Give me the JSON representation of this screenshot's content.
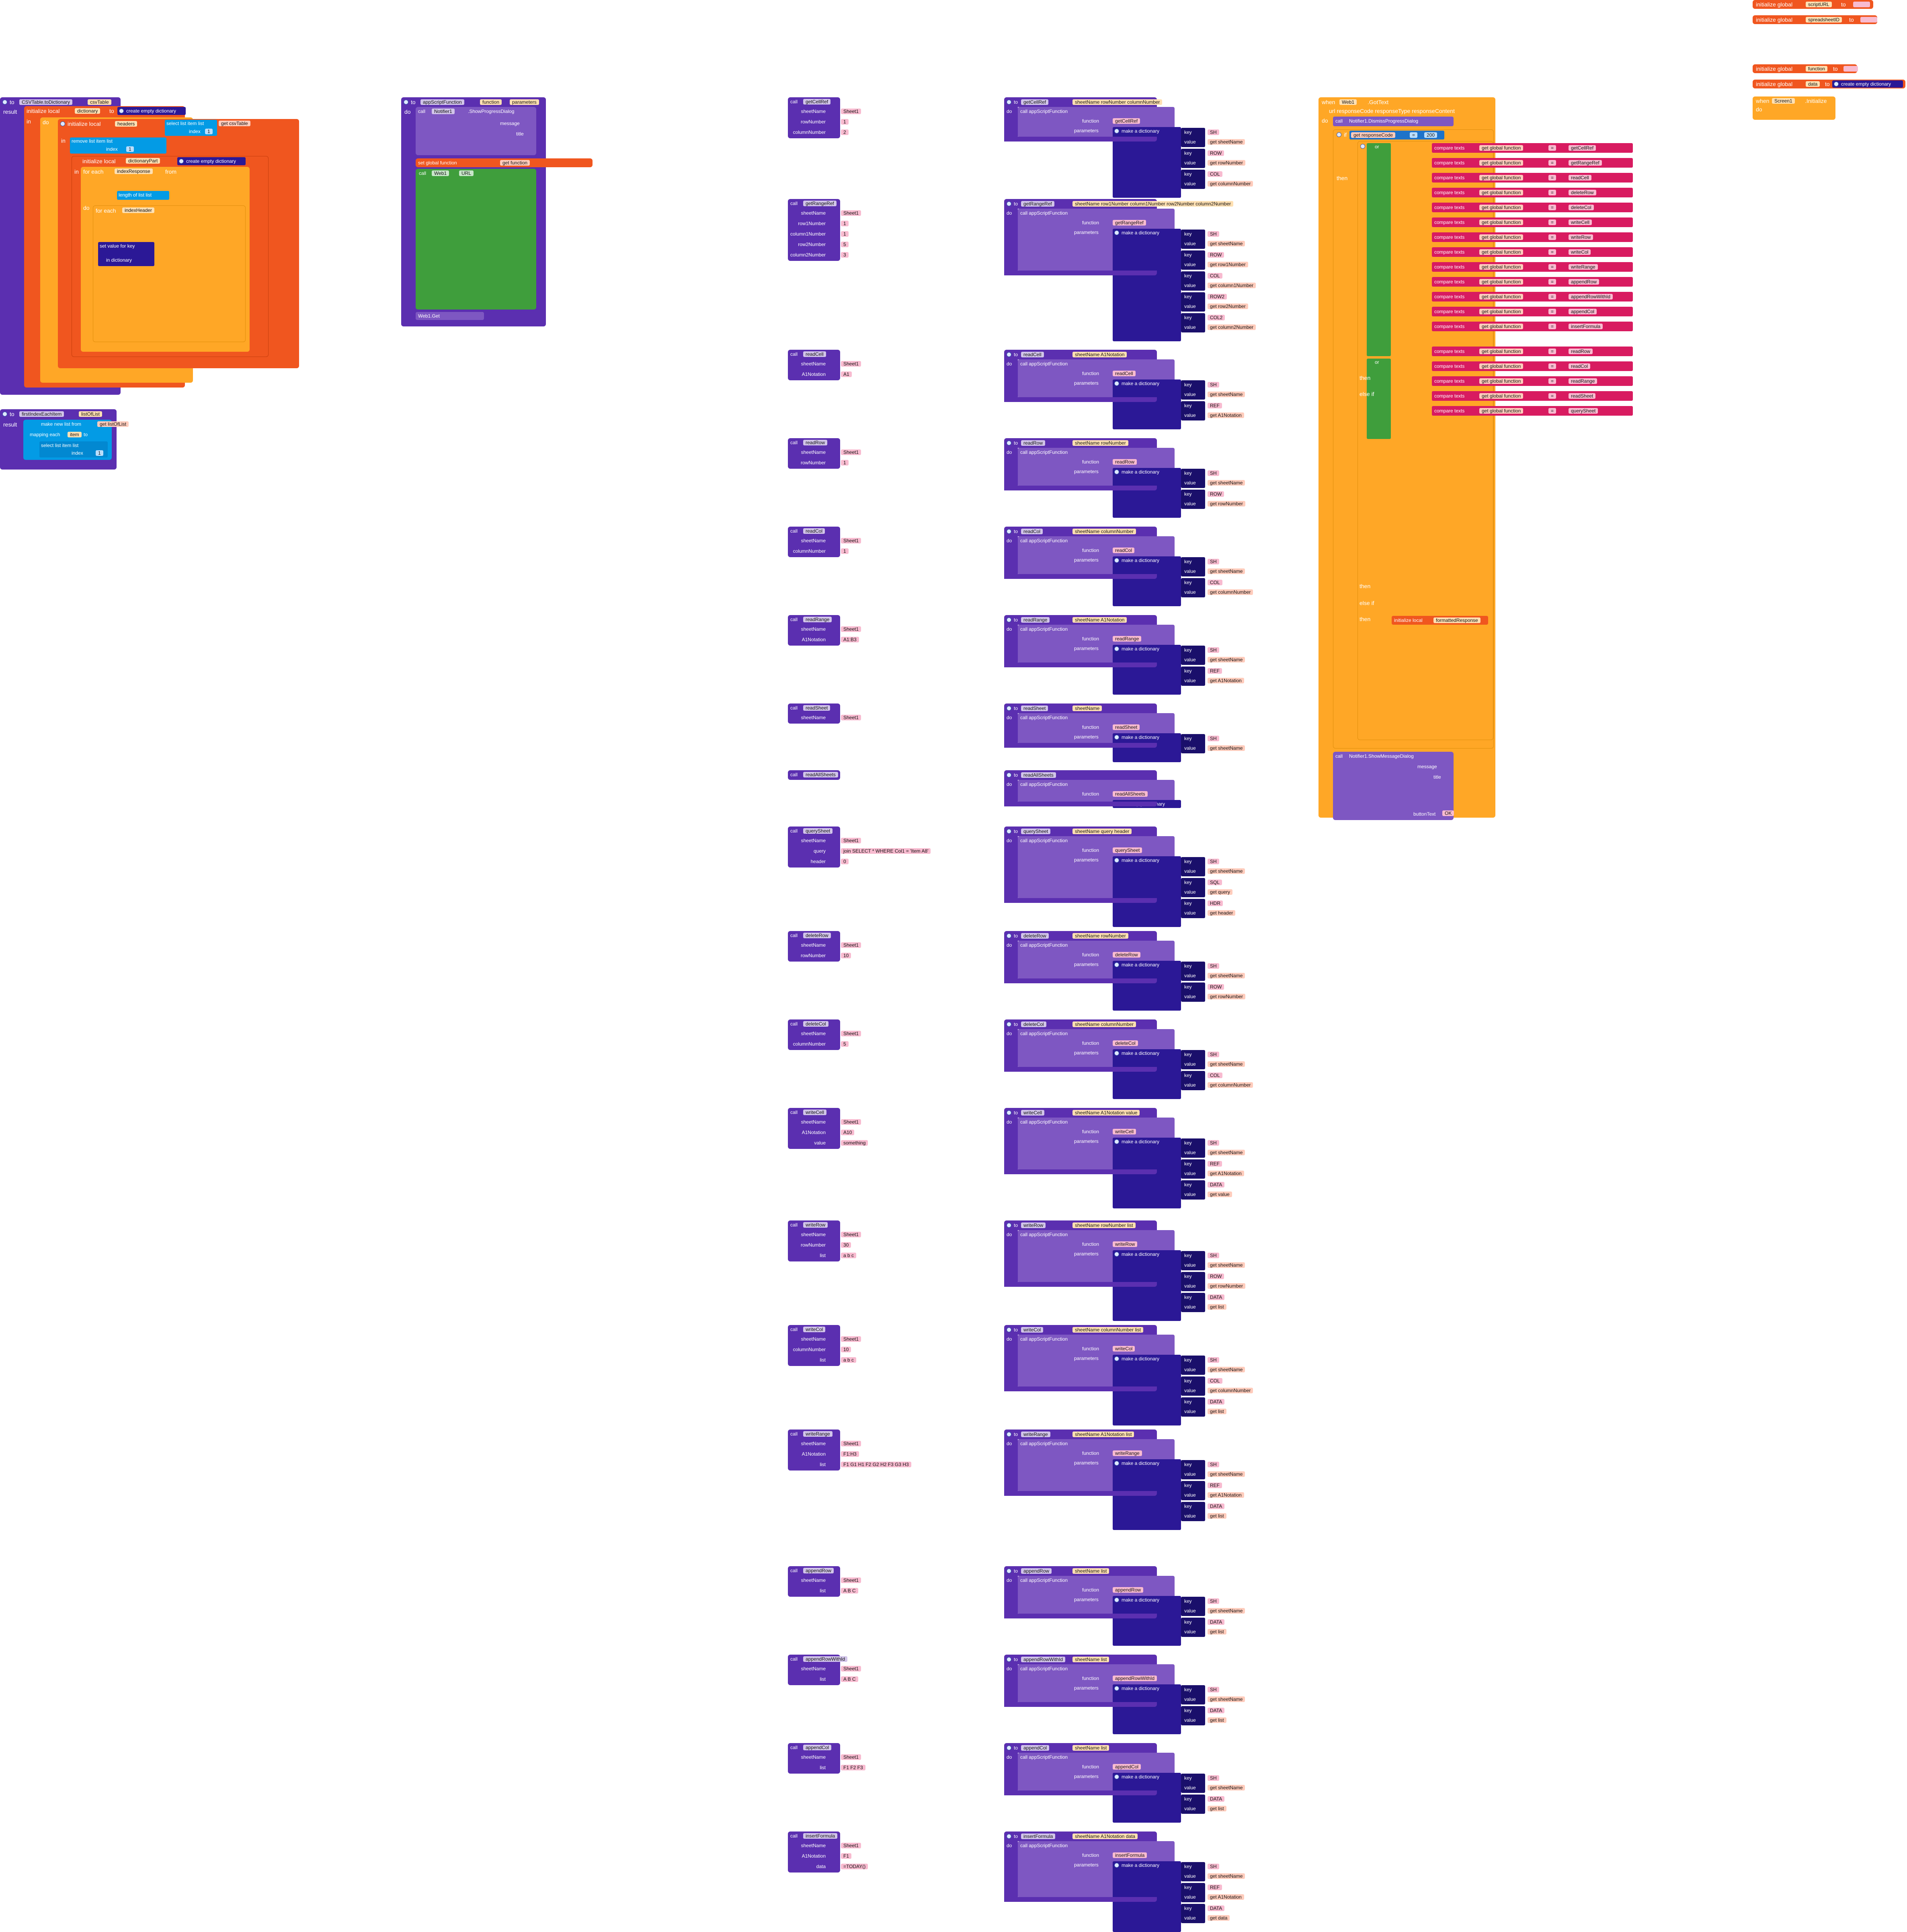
{
  "colors": {
    "procedure": "#5b2fb0",
    "procedure_dark": "#3c1b8a",
    "variable": "#f0561f",
    "text": "#d81b60",
    "math": "#1e73c9",
    "list": "#039be5",
    "dict": "#2b1896",
    "control": "#ffa726",
    "logic": "#3f9e3c",
    "component": "#7e57c2",
    "chip_bg": "#ffe0b2",
    "chip_text_bg": "#f8bbd0"
  },
  "globals": {
    "init1": "initialize global",
    "var1": "scriptURL",
    "to1": "to",
    "init2": "initialize global",
    "var2": "spreadsheetID",
    "to2": "to",
    "init3": "initialize global",
    "var3": "function",
    "to3": "to",
    "init4": "initialize global",
    "var4": "data",
    "to4": "to",
    "empty_dict": "create empty dictionary",
    "screen_when": "when",
    "screen_name": "Screen1",
    "screen_event": ".Initialize",
    "screen_do": "do"
  },
  "csv_proc": {
    "to": "to",
    "name": "CSVTable.toDictionary",
    "param": "csvTable",
    "result": "result",
    "init_local": "initialize local",
    "dictionary": "dictionary",
    "to_kw": "to",
    "create_empty": "create empty dictionary",
    "in_kw": "in",
    "do_kw": "do",
    "headers": "headers",
    "select_item": "select list item list",
    "get_csvTable": "get csvTable",
    "index": "index",
    "index_val": "1",
    "remove_item": "remove list item list",
    "dictionaryPart": "dictionaryPart",
    "for_each": "for each",
    "indexResponse": "indexResponse",
    "from": "from",
    "length_of_list": "length of list list",
    "by": "by",
    "indexHeader": "indexHeader",
    "set_value_for_key": "set value for key",
    "in_dictionary": "in dictionary",
    "get_headers": "get headers",
    "get_indexHeader": "get indexHeader",
    "get_dictionaryPart": "get dictionaryPart",
    "get_indexResponse": "get indexResponse",
    "get_dictionary": "get dictionary",
    "set_kw": "set",
    "result_get": "get dictionary"
  },
  "first_index_proc": {
    "to": "to",
    "name": "firstIndexEachItem",
    "param": "listOfList",
    "result": "result",
    "make_new_list": "make new list from",
    "get_listOfList": "get listOfList",
    "mapping": "mapping each",
    "item": "item",
    "to_kw": "to",
    "select": "select list item list",
    "get_item": "get item",
    "index": "index",
    "index_val": "1"
  },
  "app_script_proc": {
    "to": "to",
    "name": "appScriptFunction",
    "p1": "function",
    "p2": "parameters",
    "do_kw": "do",
    "call": "call",
    "notifier": "Notifier1",
    "show_progress": ".ShowProgressDialog",
    "message": "message",
    "title": "title",
    "join": "join",
    "waiting": "Waiting response from",
    "get_function": "get function",
    "set_global_function": "set global function",
    "to_kw": "to",
    "web": "Web1",
    "url": "URL",
    "init_local": "initialize local",
    "url_var": "url",
    "get_global_scriptURL": "get global scriptURL",
    "q_id": "?id=",
    "get_global_spreadsheetID": "get global spreadsheetID",
    "amp_fn": "&fn=",
    "get_global_function": "get global function",
    "for_each_key": "for each key with value in dictionary",
    "get_parameters": "get parameters",
    "set_url": "set url",
    "get_url": "get url",
    "amp": "&",
    "get_key": "get key",
    "eq": "=",
    "get_value": "get value",
    "result": "result",
    "web_get": "Web1.Get"
  },
  "web_handler": {
    "when": "when",
    "comp": "Web1",
    "event": ".GotText",
    "params": "url responseCode responseType responseContent",
    "do_kw": "do",
    "call": "call",
    "dismiss": "Notifier1.DismissProgressDialog",
    "if_kw": "if",
    "then_kw": "then",
    "else_if": "else if",
    "else_kw": "else",
    "get_responseCode": "get responseCode",
    "eq_op": "=",
    "code_200": "200",
    "or": "or",
    "compare_texts": "compare texts",
    "get_global_function": "get global function",
    "compare_op": "=",
    "fn_list1": [
      "getCellRef",
      "getRangeRef",
      "readCell",
      "deleteRow",
      "deleteCol",
      "writeCell",
      "writeRow",
      "writeCol",
      "writeRange",
      "appendRow",
      "appendRowWithId",
      "appendCol",
      "insertFormula"
    ],
    "fn_list2": [
      "readRow",
      "readCol",
      "readRange",
      "readSheet",
      "querySheet"
    ],
    "init_local": "initialize local",
    "formattedResponse": "formattedResponse",
    "call_web_decode": "call Web1.JSONTextDecode",
    "json_text": "jsonText",
    "get_responseContent": "get responseContent",
    "set_responseContent": "set responseContent",
    "get_formattedResponse": "get formattedResponse",
    "readAllSheets": "readAllSheets",
    "for_each_item": "for each item in list",
    "sheetName": "sheetName",
    "sheetData": "sheetData",
    "get_item": "get item",
    "index_1": "1",
    "index_2": "2",
    "get_sheetName": "get sheetName",
    "dictionary_txt": "dictionary",
    "list_txt": "list",
    "set_value_for_key": "set value for key",
    "in_dictionary": "in dictionary",
    "get_global_data": "get global data",
    "to_kw": "to",
    "call_csv": "call CSVTable.toDictionary",
    "csvTable": "csvTable",
    "get_sheetData": "get sheetData",
    "call_first": "call firstIndexEachItem",
    "listOfList": "listOfList",
    "show_message": "Notifier1.ShowMessageDialog",
    "message": "message",
    "title": "title",
    "join": "join",
    "paren_open": "(",
    "paren_close": ")",
    "button_text": "buttonText",
    "ok": "OK"
  },
  "calls": [
    {
      "name": "getCellRef",
      "args": [
        [
          "sheetName",
          "Sheet1"
        ],
        [
          "rowNumber",
          "1"
        ],
        [
          "columnNumber",
          "2"
        ]
      ]
    },
    {
      "name": "getRangeRef",
      "args": [
        [
          "sheetName",
          "Sheet1"
        ],
        [
          "row1Number",
          "1"
        ],
        [
          "column1Number",
          "1"
        ],
        [
          "row2Number",
          "5"
        ],
        [
          "column2Number",
          "3"
        ]
      ]
    },
    {
      "name": "readCell",
      "args": [
        [
          "sheetName",
          "Sheet1"
        ],
        [
          "A1Notation",
          "A1"
        ]
      ]
    },
    {
      "name": "readRow",
      "args": [
        [
          "sheetName",
          "Sheet1"
        ],
        [
          "rowNumber",
          "1"
        ]
      ]
    },
    {
      "name": "readCol",
      "args": [
        [
          "sheetName",
          "Sheet1"
        ],
        [
          "columnNumber",
          "1"
        ]
      ]
    },
    {
      "name": "readRange",
      "args": [
        [
          "sheetName",
          "Sheet1"
        ],
        [
          "A1Notation",
          "A1:B3"
        ]
      ]
    },
    {
      "name": "readSheet",
      "args": [
        [
          "sheetName",
          "Sheet1"
        ]
      ]
    },
    {
      "name": "readAllSheets",
      "args": []
    },
    {
      "name": "querySheet",
      "args": [
        [
          "sheetName",
          "Sheet1"
        ],
        [
          "query",
          "join SELECT * WHERE Col1 = 'Item A8'"
        ],
        [
          "header",
          "0"
        ]
      ]
    },
    {
      "name": "deleteRow",
      "args": [
        [
          "sheetName",
          "Sheet1"
        ],
        [
          "rowNumber",
          "10"
        ]
      ]
    },
    {
      "name": "deleteCol",
      "args": [
        [
          "sheetName",
          "Sheet1"
        ],
        [
          "columnNumber",
          "5"
        ]
      ]
    },
    {
      "name": "writeCell",
      "args": [
        [
          "sheetName",
          "Sheet1"
        ],
        [
          "A1Notation",
          "A10"
        ],
        [
          "value",
          "something"
        ]
      ]
    },
    {
      "name": "writeRow",
      "args": [
        [
          "sheetName",
          "Sheet1"
        ],
        [
          "rowNumber",
          "30"
        ],
        [
          "list",
          "a b c"
        ]
      ]
    },
    {
      "name": "writeCol",
      "args": [
        [
          "sheetName",
          "Sheet1"
        ],
        [
          "columnNumber",
          "10"
        ],
        [
          "list",
          "a b c"
        ]
      ]
    },
    {
      "name": "writeRange",
      "args": [
        [
          "sheetName",
          "Sheet1"
        ],
        [
          "A1Notation",
          "F1:H3"
        ],
        [
          "list",
          "F1 G1 H1 F2 G2 H2 F3 G3 H3"
        ]
      ]
    },
    {
      "name": "appendRow",
      "args": [
        [
          "sheetName",
          "Sheet1"
        ],
        [
          "list",
          "A B C"
        ]
      ]
    },
    {
      "name": "appendRowWithId",
      "args": [
        [
          "sheetName",
          "Sheet1"
        ],
        [
          "list",
          "A B C"
        ]
      ]
    },
    {
      "name": "appendCol",
      "args": [
        [
          "sheetName",
          "Sheet1"
        ],
        [
          "list",
          "F1 F2 F3"
        ]
      ]
    },
    {
      "name": "insertFormula",
      "args": [
        [
          "sheetName",
          "Sheet1"
        ],
        [
          "A1Notation",
          "F1"
        ],
        [
          "data",
          "=TODAY()"
        ]
      ]
    }
  ],
  "procs": [
    {
      "name": "getCellRef",
      "params": "sheetName rowNumber columnNumber",
      "fn": "getCellRef",
      "pairs": [
        [
          "SH",
          "get sheetName"
        ],
        [
          "ROW",
          "get rowNumber"
        ],
        [
          "COL",
          "get columnNumber"
        ]
      ]
    },
    {
      "name": "getRangeRef",
      "params": "sheetName row1Number column1Number row2Number column2Number",
      "fn": "getRangeRef",
      "pairs": [
        [
          "SH",
          "get sheetName"
        ],
        [
          "ROW",
          "get row1Number"
        ],
        [
          "COL",
          "get column1Number"
        ],
        [
          "ROW2",
          "get row2Number"
        ],
        [
          "COL2",
          "get column2Number"
        ]
      ]
    },
    {
      "name": "readCell",
      "params": "sheetName A1Notation",
      "fn": "readCell",
      "pairs": [
        [
          "SH",
          "get sheetName"
        ],
        [
          "REF",
          "get A1Notation"
        ]
      ]
    },
    {
      "name": "readRow",
      "params": "sheetName rowNumber",
      "fn": "readRow",
      "pairs": [
        [
          "SH",
          "get sheetName"
        ],
        [
          "ROW",
          "get rowNumber"
        ]
      ]
    },
    {
      "name": "readCol",
      "params": "sheetName columnNumber",
      "fn": "readCol",
      "pairs": [
        [
          "SH",
          "get sheetName"
        ],
        [
          "COL",
          "get columnNumber"
        ]
      ]
    },
    {
      "name": "readRange",
      "params": "sheetName A1Notation",
      "fn": "readRange",
      "pairs": [
        [
          "SH",
          "get sheetName"
        ],
        [
          "REF",
          "get A1Notation"
        ]
      ]
    },
    {
      "name": "readSheet",
      "params": "sheetName",
      "fn": "readSheet",
      "pairs": [
        [
          "SH",
          "get sheetName"
        ]
      ]
    },
    {
      "name": "readAllSheets",
      "params": "",
      "fn": "readAllSheets",
      "pairs": []
    },
    {
      "name": "querySheet",
      "params": "sheetName query header",
      "fn": "querySheet",
      "pairs": [
        [
          "SH",
          "get sheetName"
        ],
        [
          "SQL",
          "get query"
        ],
        [
          "HDR",
          "get header"
        ]
      ]
    },
    {
      "name": "deleteRow",
      "params": "sheetName rowNumber",
      "fn": "deleteRow",
      "pairs": [
        [
          "SH",
          "get sheetName"
        ],
        [
          "ROW",
          "get rowNumber"
        ]
      ]
    },
    {
      "name": "deleteCol",
      "params": "sheetName columnNumber",
      "fn": "deleteCol",
      "pairs": [
        [
          "SH",
          "get sheetName"
        ],
        [
          "COL",
          "get columnNumber"
        ]
      ]
    },
    {
      "name": "writeCell",
      "params": "sheetName A1Notation value",
      "fn": "writeCell",
      "pairs": [
        [
          "SH",
          "get sheetName"
        ],
        [
          "REF",
          "get A1Notation"
        ],
        [
          "DATA",
          "get value"
        ]
      ]
    },
    {
      "name": "writeRow",
      "params": "sheetName rowNumber list",
      "fn": "writeRow",
      "pairs": [
        [
          "SH",
          "get sheetName"
        ],
        [
          "ROW",
          "get rowNumber"
        ],
        [
          "DATA",
          "get list"
        ]
      ]
    },
    {
      "name": "writeCol",
      "params": "sheetName columnNumber list",
      "fn": "writeCol",
      "pairs": [
        [
          "SH",
          "get sheetName"
        ],
        [
          "COL",
          "get columnNumber"
        ],
        [
          "DATA",
          "get list"
        ]
      ]
    },
    {
      "name": "writeRange",
      "params": "sheetName A1Notation list",
      "fn": "writeRange",
      "pairs": [
        [
          "SH",
          "get sheetName"
        ],
        [
          "REF",
          "get A1Notation"
        ],
        [
          "DATA",
          "get list"
        ]
      ]
    },
    {
      "name": "appendRow",
      "params": "sheetName list",
      "fn": "appendRow",
      "pairs": [
        [
          "SH",
          "get sheetName"
        ],
        [
          "DATA",
          "get list"
        ]
      ]
    },
    {
      "name": "appendRowWithId",
      "params": "sheetName list",
      "fn": "appendRowWithId",
      "pairs": [
        [
          "SH",
          "get sheetName"
        ],
        [
          "DATA",
          "get list"
        ]
      ]
    },
    {
      "name": "appendCol",
      "params": "sheetName list",
      "fn": "appendCol",
      "pairs": [
        [
          "SH",
          "get sheetName"
        ],
        [
          "DATA",
          "get list"
        ]
      ]
    },
    {
      "name": "insertFormula",
      "params": "sheetName A1Notation data",
      "fn": "insertFormula",
      "pairs": [
        [
          "SH",
          "get sheetName"
        ],
        [
          "REF",
          "get A1Notation"
        ],
        [
          "DATA",
          "get data"
        ]
      ]
    }
  ],
  "labels": {
    "call": "call",
    "to": "to",
    "do_kw": "do",
    "call_app": "call appScriptFunction",
    "function": "function",
    "parameters": "parameters",
    "make_dict": "make a dictionary",
    "key": "key",
    "value": "value",
    "create_empty": "create empty dictionary",
    "make_list": "make a list"
  }
}
